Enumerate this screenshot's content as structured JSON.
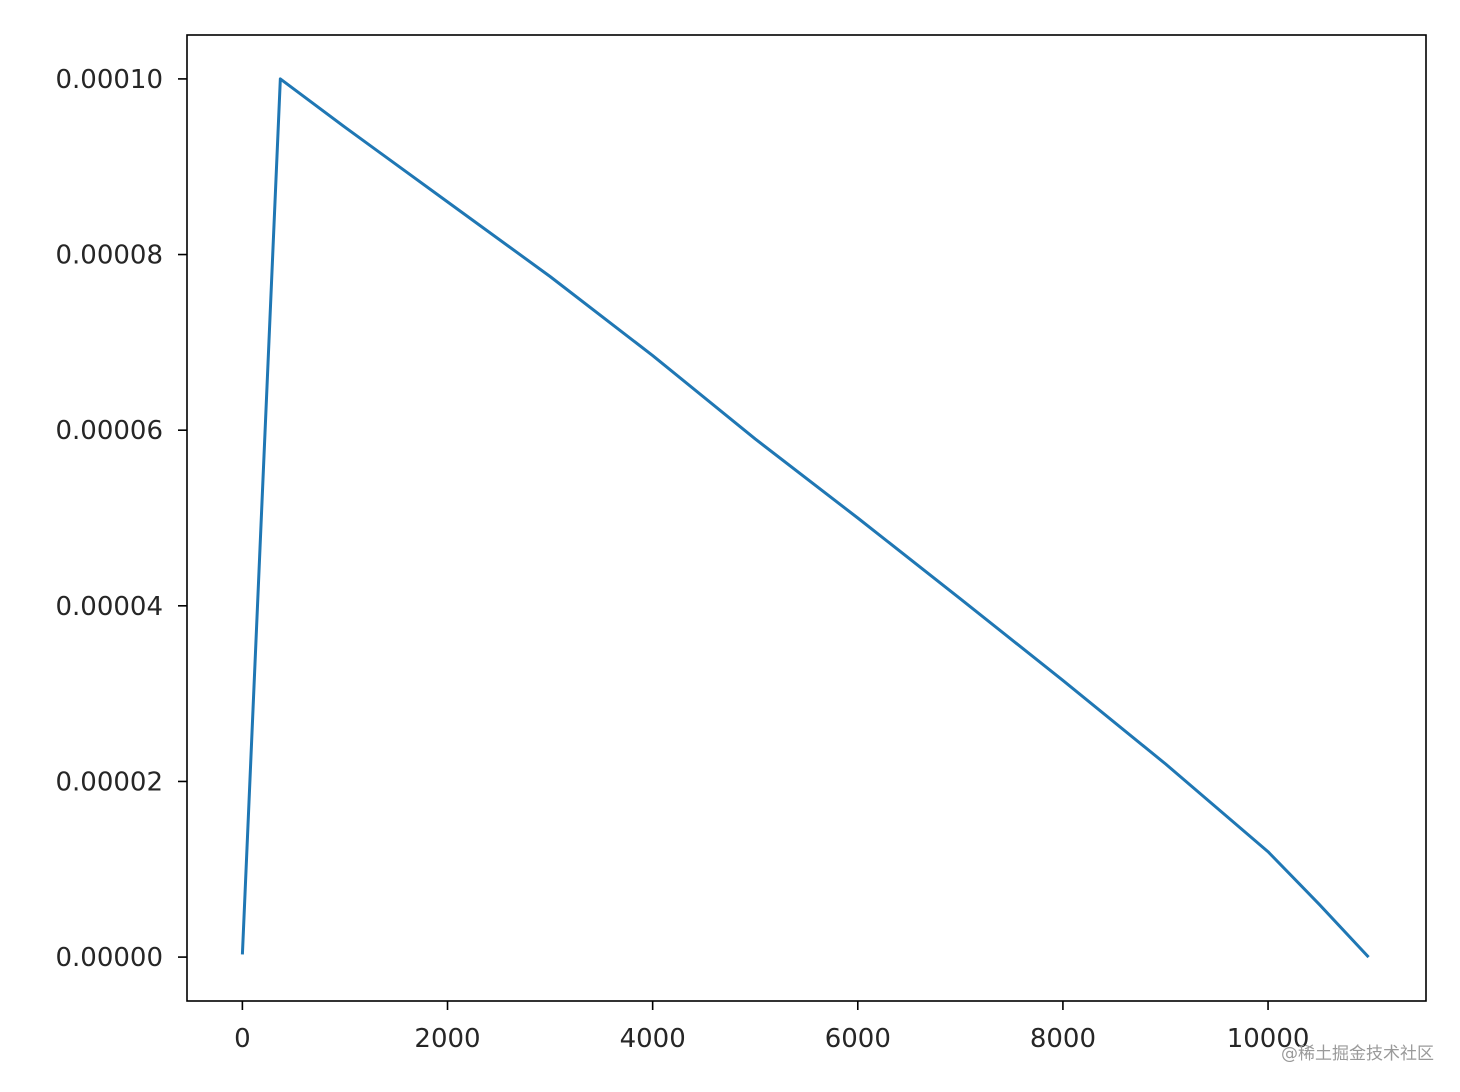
{
  "chart_data": {
    "type": "line",
    "title": "",
    "xlabel": "",
    "ylabel": "",
    "xlim": [
      -540,
      11540
    ],
    "ylim": [
      -5e-06,
      0.000105
    ],
    "grid": false,
    "legend": "none",
    "x_ticks": [
      0,
      2000,
      4000,
      6000,
      8000,
      10000
    ],
    "x_tick_labels": [
      "0",
      "2000",
      "4000",
      "6000",
      "8000",
      "10000"
    ],
    "y_ticks": [
      0,
      2e-05,
      4e-05,
      6e-05,
      8e-05,
      0.0001
    ],
    "y_tick_labels": [
      "0.00000",
      "0.00002",
      "0.00004",
      "0.00006",
      "0.00008",
      "0.00010"
    ],
    "series": [
      {
        "color": "#1f77b4",
        "x": [
          0,
          370,
          1000,
          2000,
          3000,
          4000,
          5000,
          6000,
          7000,
          8000,
          9000,
          10000,
          10500,
          10980
        ],
        "y": [
          3e-07,
          0.0001,
          9.45e-05,
          8.6e-05,
          7.75e-05,
          6.85e-05,
          5.9e-05,
          5e-05,
          4.08e-05,
          3.15e-05,
          2.2e-05,
          1.2e-05,
          6e-06,
          0
        ]
      }
    ]
  },
  "watermark": "@稀土掘金技术社区"
}
